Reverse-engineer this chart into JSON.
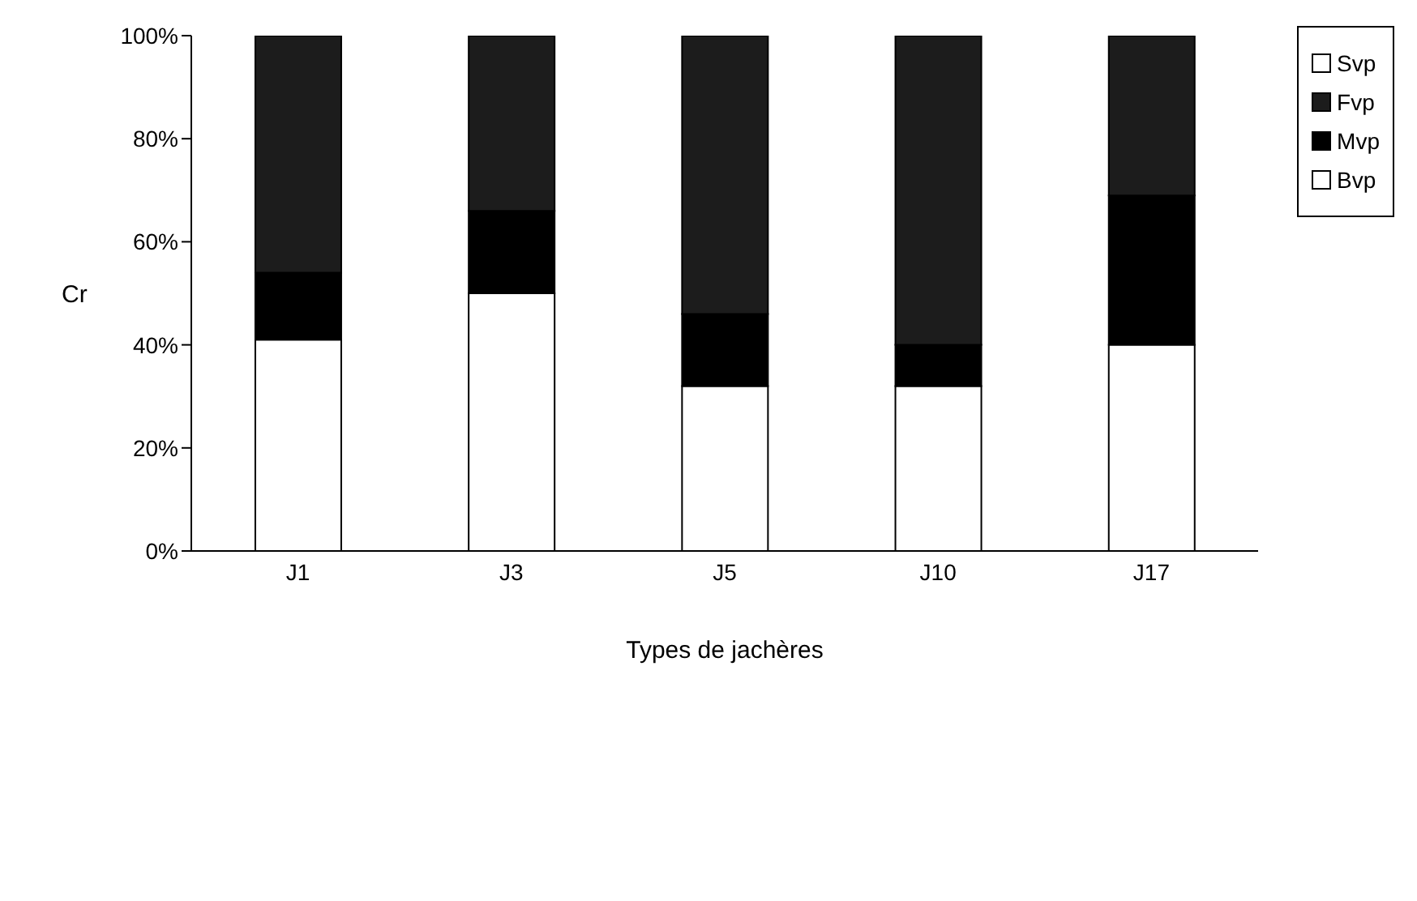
{
  "chart_data": {
    "type": "bar",
    "stacked": true,
    "xlabel": "Types de jachères",
    "ylabel": "Cr",
    "categories": [
      "J1",
      "J3",
      "J5",
      "J10",
      "J17"
    ],
    "series": [
      {
        "name": "Bvp",
        "color": "#ffffff",
        "values": [
          41,
          50,
          32,
          32,
          40
        ]
      },
      {
        "name": "Mvp",
        "color": "#000000",
        "values": [
          13,
          16,
          14,
          8,
          29
        ]
      },
      {
        "name": "Fvp",
        "color": "#1c1c1c",
        "values": [
          46,
          34,
          54,
          60,
          31
        ]
      },
      {
        "name": "Svp",
        "color": "#ffffff",
        "values": [
          0,
          0,
          0,
          0,
          0
        ]
      }
    ],
    "ylim": [
      0,
      100
    ],
    "yticks": [
      {
        "value": 0,
        "label": "0%"
      },
      {
        "value": 20,
        "label": "20%"
      },
      {
        "value": 40,
        "label": "40%"
      },
      {
        "value": 60,
        "label": "60%"
      },
      {
        "value": 80,
        "label": "80%"
      },
      {
        "value": 100,
        "label": "100%"
      }
    ],
    "grid": false,
    "legend": "top right"
  }
}
